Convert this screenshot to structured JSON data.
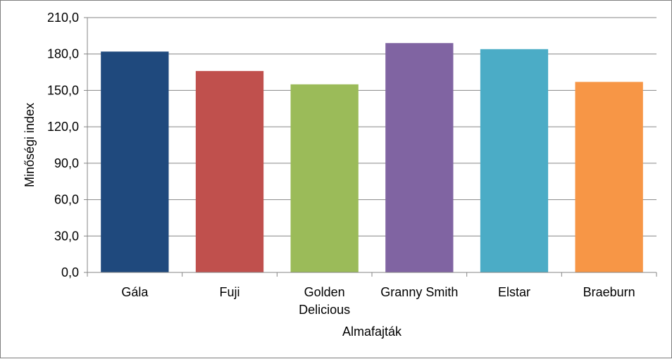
{
  "chart_data": {
    "type": "bar",
    "categories": [
      [
        "Gála"
      ],
      [
        "Fuji"
      ],
      [
        "Golden",
        "Delicious"
      ],
      [
        "Granny Smith"
      ],
      [
        "Elstar"
      ],
      [
        "Braeburn"
      ]
    ],
    "values": [
      182,
      166,
      155,
      189,
      184,
      157
    ],
    "colors": [
      "#1F497D",
      "#C0504D",
      "#9BBB59",
      "#8064A2",
      "#4BACC6",
      "#F79646"
    ],
    "title": "",
    "xlabel": "Almafajták",
    "ylabel": "Minőségi index",
    "ylim": [
      0,
      210
    ],
    "yticks": [
      "0,0",
      "30,0",
      "60,0",
      "90,0",
      "120,0",
      "150,0",
      "180,0",
      "210,0"
    ],
    "ytick_values": [
      0,
      30,
      60,
      90,
      120,
      150,
      180,
      210
    ],
    "grid": true,
    "legend": "none",
    "gridline_color": "#868686",
    "axis_color": "#868686"
  }
}
